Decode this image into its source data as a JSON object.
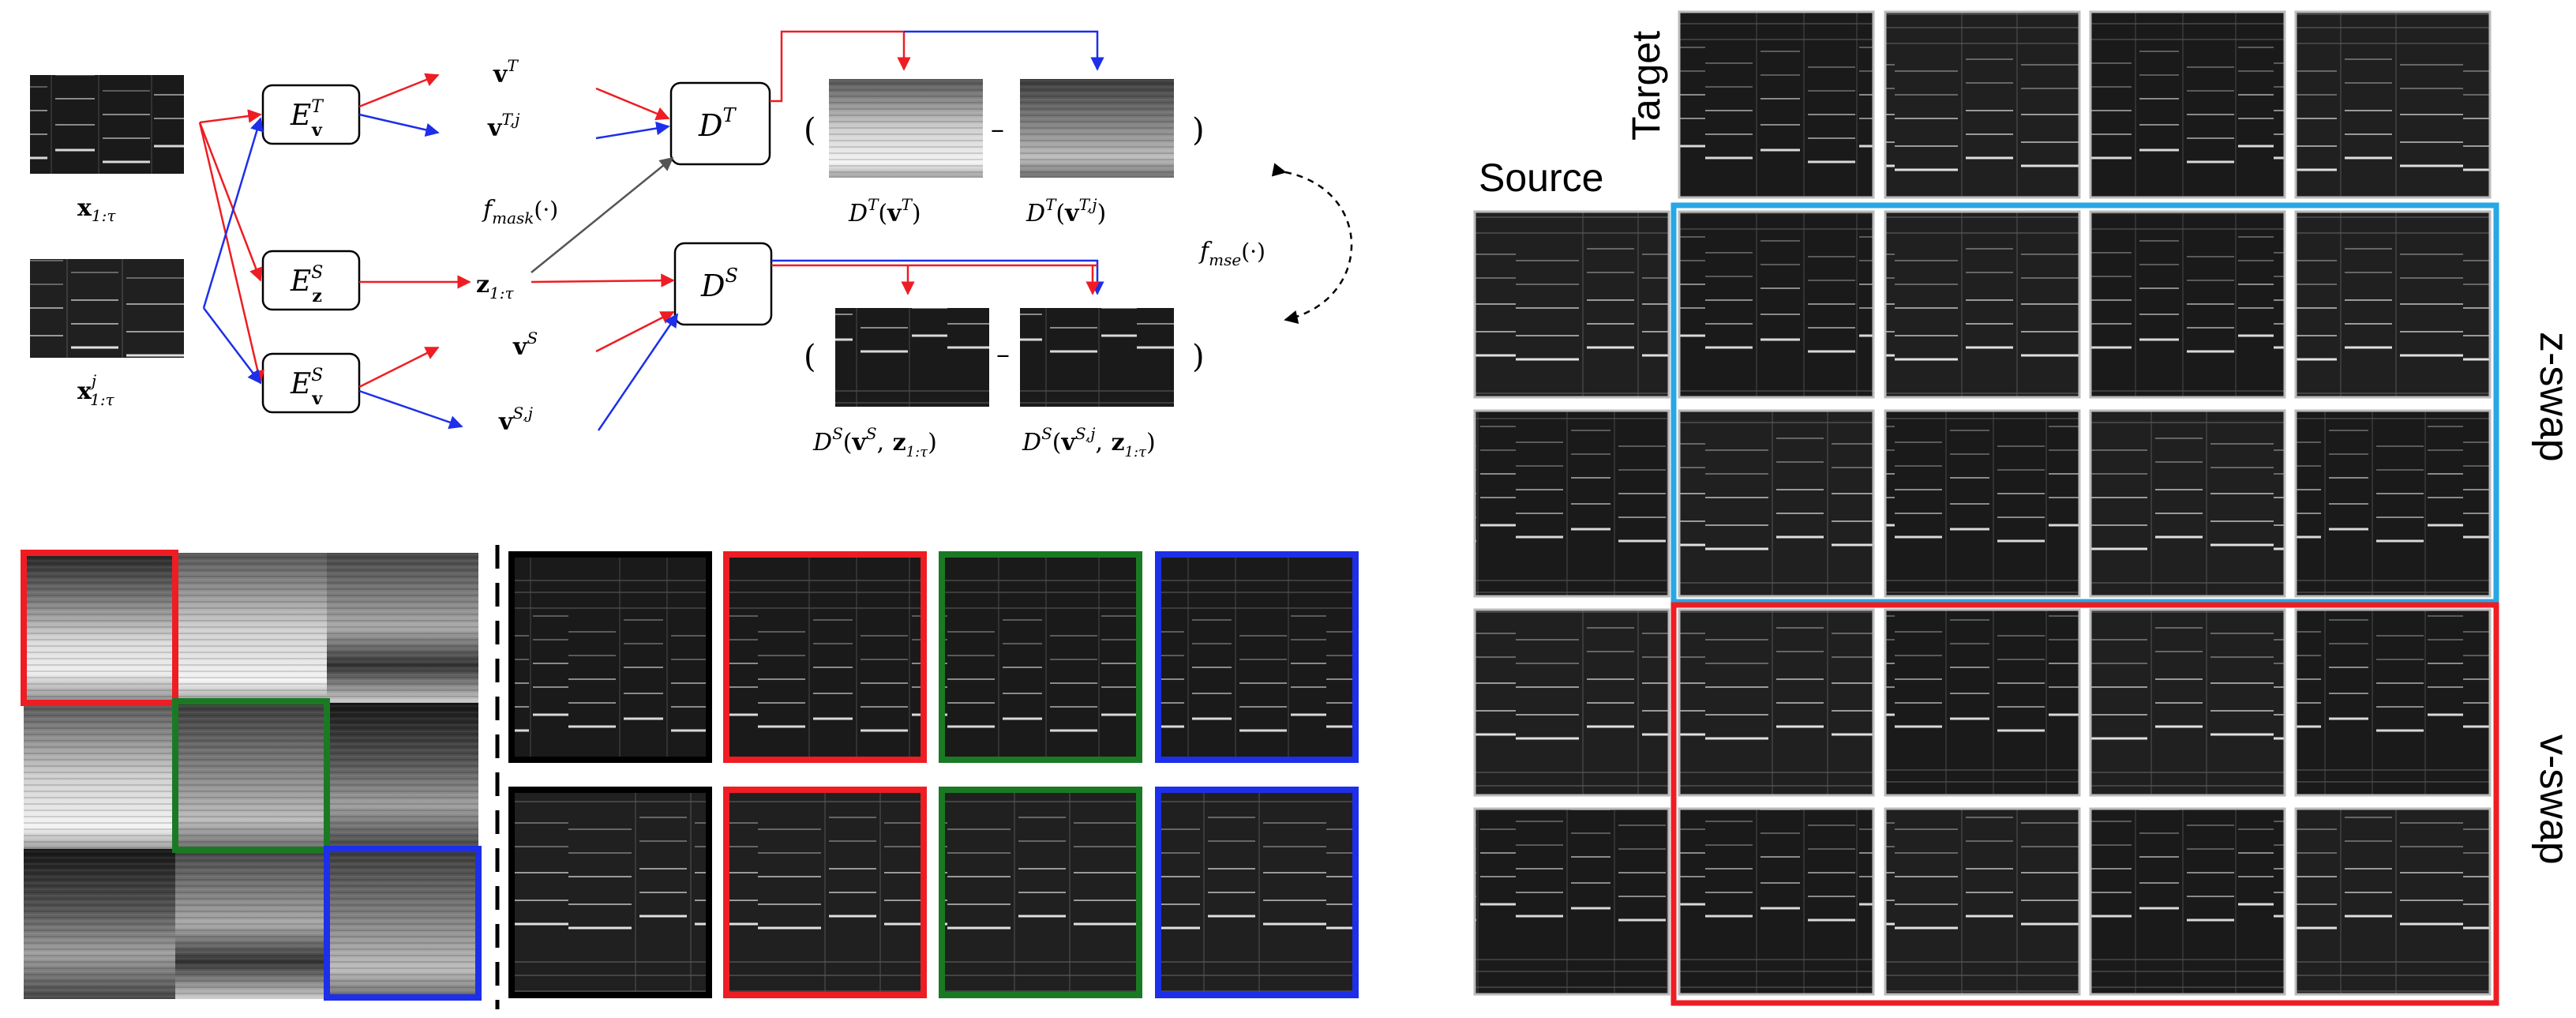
{
  "diagram": {
    "inputs": [
      {
        "base": "x",
        "sub": "1:τ",
        "sup": ""
      },
      {
        "base": "x",
        "sub": "1:τ",
        "sup": "j"
      }
    ],
    "encoders": [
      {
        "base": "E",
        "sub": "v",
        "sup": "T"
      },
      {
        "base": "E",
        "sub": "z",
        "sup": "S"
      },
      {
        "base": "E",
        "sub": "v",
        "sup": "S"
      }
    ],
    "latents": {
      "vT": {
        "base": "v",
        "sup": "T"
      },
      "vTj": {
        "base": "v",
        "sup": "T,j"
      },
      "z": {
        "base": "z",
        "sub": "1:τ"
      },
      "vS": {
        "base": "v",
        "sup": "S"
      },
      "vSj": {
        "base": "v",
        "sup": "S,j"
      }
    },
    "decoders": [
      {
        "base": "D",
        "sup": "T"
      },
      {
        "base": "D",
        "sup": "S"
      }
    ],
    "f_mask": {
      "base": "f",
      "sub": "mask",
      "arg": "(·)"
    },
    "f_mse": {
      "base": "f",
      "sub": "mse",
      "arg": "(·)"
    },
    "paren_open": "(",
    "paren_close": ")",
    "minus": "–",
    "outputs": {
      "dt_a": "D^T(v^T)",
      "dt_b": "D^T(v^T,j)",
      "ds_a": "D^S(v^S, z_1:τ)",
      "ds_b": "D^S(v^S,j, z_1:τ)"
    }
  },
  "grid": {
    "target_label": "Target",
    "source_label": "Source",
    "z_swap_label": "z-swap",
    "v_swap_label": "v-swap"
  },
  "colors": {
    "red": "#ee1d23",
    "blue": "#1d2fe8",
    "green": "#1a7a24",
    "black": "#000000",
    "cyan": "#27a7e4",
    "gray_arrow": "#555555"
  }
}
